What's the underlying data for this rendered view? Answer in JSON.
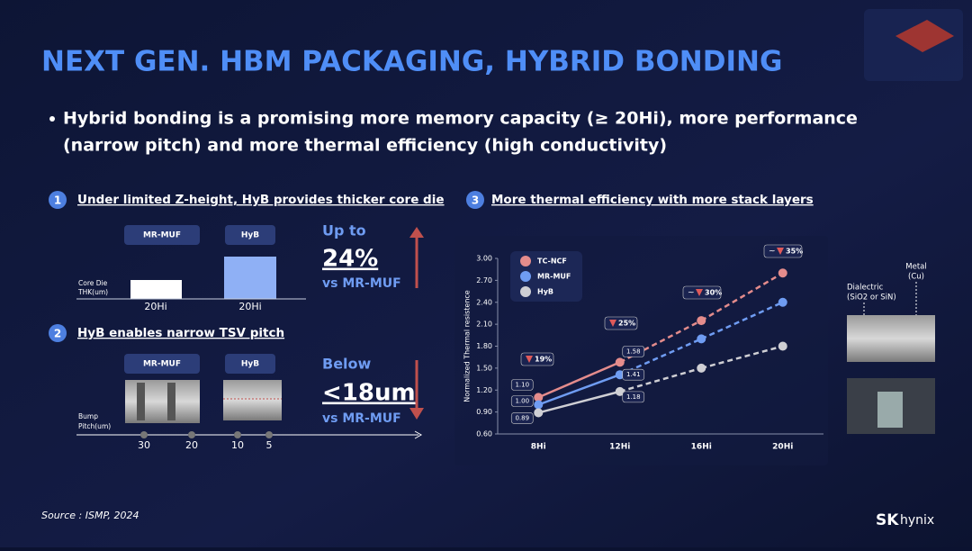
{
  "header": {
    "title": "NEXT GEN. HBM PACKAGING, HYBRID BONDING"
  },
  "bullet": [
    "Hybrid bonding is a promising more memory capacity (≥ 20Hi), more performance",
    "(narrow pitch) and more thermal efficiency (high conductivity)"
  ],
  "section1": {
    "number": "1",
    "heading": "Under limited Z-height, HyB provides thicker core die",
    "labels": [
      "MR-MUF",
      "HyB"
    ],
    "axis_label": [
      "Core Die",
      "THK(um)"
    ],
    "bar_labels": [
      "20Hi",
      "20Hi"
    ],
    "callout": {
      "pre": "Up to",
      "big": "24%",
      "post": "vs MR-MUF"
    }
  },
  "section2": {
    "number": "2",
    "heading": "HyB enables narrow TSV pitch",
    "labels": [
      "MR-MUF",
      "HyB"
    ],
    "axis_label": [
      "Bump",
      "Pitch(um)"
    ],
    "ticks": [
      "30",
      "20",
      "10",
      "5"
    ],
    "callout": {
      "pre": "Below",
      "big": "<18um",
      "post": "vs MR-MUF"
    }
  },
  "section3": {
    "number": "3",
    "heading": "More thermal efficiency with more stack layers",
    "images": {
      "metal": [
        "Metal",
        "(Cu)"
      ],
      "dielectric": [
        "Dialectric",
        "(SiO2 or SiN)"
      ]
    }
  },
  "chart_data": {
    "type": "line",
    "y_label": "Normalized Thermal resistence",
    "categories": [
      "8Hi",
      "12Hi",
      "16Hi",
      "20Hi"
    ],
    "ylim": [
      0.6,
      3.0
    ],
    "yticks": [
      {
        "value": 0.6,
        "label": "0.60"
      },
      {
        "value": 0.9,
        "label": "0.90"
      },
      {
        "value": 1.2,
        "label": "1.20"
      },
      {
        "value": 1.5,
        "label": "1.50"
      },
      {
        "value": 1.8,
        "label": "1.80"
      },
      {
        "value": 2.1,
        "label": "2.10"
      },
      {
        "value": 2.4,
        "label": "2.40"
      },
      {
        "value": 2.7,
        "label": "2.70"
      },
      {
        "value": 3.0,
        "label": "3.00"
      }
    ],
    "series": [
      {
        "name": "TC-NCF",
        "color": "#e48c8c",
        "values": [
          1.1,
          1.58,
          2.15,
          2.8
        ],
        "value_labels": [
          "1.10",
          "1.58",
          null,
          null
        ]
      },
      {
        "name": "MR-MUF",
        "color": "#6f9cf2",
        "values": [
          1.0,
          1.41,
          1.9,
          2.4
        ],
        "value_labels": [
          "1.00",
          "1.41",
          null,
          null
        ]
      },
      {
        "name": "HyB",
        "color": "#cfcfd4",
        "values": [
          0.89,
          1.18,
          1.5,
          1.8
        ],
        "value_labels": [
          "0.89",
          "1.18",
          null,
          null
        ]
      }
    ],
    "annotations": [
      {
        "text": "19%"
      },
      {
        "text": "25%"
      },
      {
        "prefix": "~",
        "text": "30%"
      },
      {
        "prefix": "~",
        "text": "35%"
      }
    ]
  },
  "footer": {
    "source": "Source : ISMP, 2024",
    "logo": [
      "SK",
      "hynix"
    ]
  }
}
